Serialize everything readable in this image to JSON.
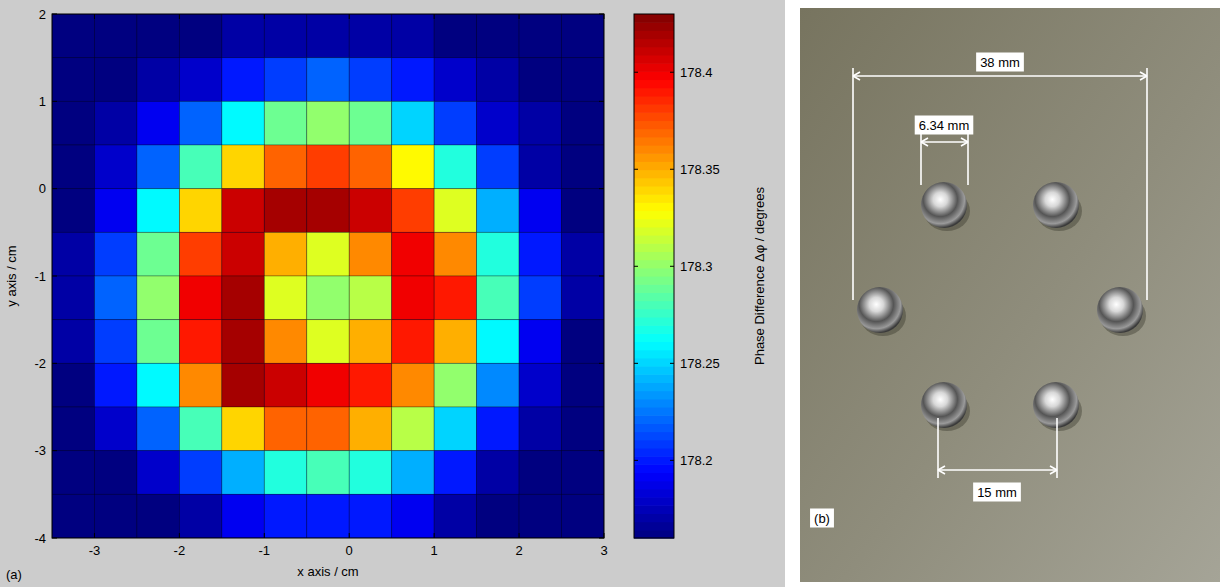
{
  "chart_data": {
    "type": "heatmap",
    "x_label": "x axis / cm",
    "y_label": "y axis / cm",
    "xlim": [
      -3.5,
      3
    ],
    "ylim": [
      -4,
      2
    ],
    "xticks": [
      -3,
      -2,
      -1,
      0,
      1,
      2,
      3
    ],
    "yticks": [
      -4,
      -3,
      -2,
      -1,
      0,
      1,
      2
    ],
    "grid": true,
    "x": [
      -3.25,
      -2.75,
      -2.25,
      -1.75,
      -1.25,
      -0.75,
      -0.25,
      0.25,
      0.75,
      1.25,
      1.75,
      2.25,
      2.75
    ],
    "y": [
      1.75,
      1.25,
      0.75,
      0.25,
      -0.25,
      -0.75,
      -1.25,
      -1.75,
      -2.25,
      -2.75,
      -3.25,
      -3.75
    ],
    "z": [
      [
        178.16,
        178.16,
        178.16,
        178.16,
        178.17,
        178.17,
        178.17,
        178.17,
        178.17,
        178.16,
        178.16,
        178.16,
        178.16
      ],
      [
        178.16,
        178.16,
        178.17,
        178.18,
        178.2,
        178.21,
        178.22,
        178.21,
        178.2,
        178.18,
        178.17,
        178.16,
        178.16
      ],
      [
        178.16,
        178.17,
        178.19,
        178.22,
        178.26,
        178.29,
        178.3,
        178.29,
        178.25,
        178.21,
        178.18,
        178.17,
        178.16
      ],
      [
        178.16,
        178.18,
        178.22,
        178.28,
        178.34,
        178.37,
        178.38,
        178.37,
        178.33,
        178.27,
        178.21,
        178.17,
        178.16
      ],
      [
        178.16,
        178.19,
        178.26,
        178.34,
        178.41,
        178.42,
        178.42,
        178.41,
        178.38,
        178.32,
        178.24,
        178.19,
        178.16
      ],
      [
        178.17,
        178.21,
        178.29,
        178.38,
        178.41,
        178.35,
        178.32,
        178.36,
        178.4,
        178.36,
        178.27,
        178.2,
        178.17
      ],
      [
        178.17,
        178.22,
        178.3,
        178.4,
        178.42,
        178.32,
        178.3,
        178.31,
        178.4,
        178.39,
        178.28,
        178.21,
        178.17
      ],
      [
        178.17,
        178.21,
        178.29,
        178.39,
        178.42,
        178.36,
        178.32,
        178.35,
        178.39,
        178.35,
        178.26,
        178.19,
        178.16
      ],
      [
        178.16,
        178.2,
        178.26,
        178.36,
        178.42,
        178.41,
        178.4,
        178.39,
        178.36,
        178.3,
        178.23,
        178.18,
        178.16
      ],
      [
        178.16,
        178.18,
        178.22,
        178.28,
        178.34,
        178.37,
        178.37,
        178.35,
        178.31,
        178.25,
        178.2,
        178.17,
        178.16
      ],
      [
        178.16,
        178.16,
        178.18,
        178.21,
        178.24,
        178.27,
        178.28,
        178.27,
        178.24,
        178.2,
        178.17,
        178.16,
        178.16
      ],
      [
        178.16,
        178.16,
        178.16,
        178.17,
        178.19,
        178.2,
        178.2,
        178.2,
        178.19,
        178.17,
        178.16,
        178.16,
        178.16
      ]
    ],
    "colorbar": {
      "label": "Phase Difference Δφ / degrees",
      "range": [
        178.16,
        178.43
      ],
      "ticks": [
        178.2,
        178.25,
        178.3,
        178.35,
        178.4
      ]
    },
    "annotations": [
      "(a)"
    ]
  },
  "photo": {
    "panel_label": "(b)",
    "dimensions": [
      {
        "label": "38 mm"
      },
      {
        "label": "6.34 mm"
      },
      {
        "label": "15 mm"
      }
    ]
  }
}
